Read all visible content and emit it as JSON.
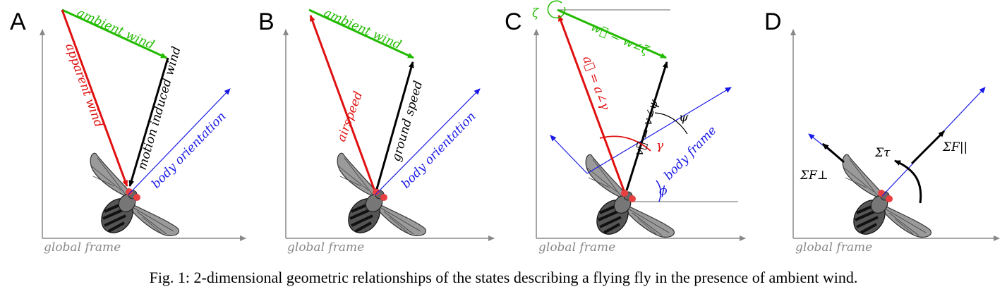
{
  "caption": "Fig. 1: 2-dimensional geometric relationships of the states describing a flying fly in the presence of ambient wind.",
  "colors": {
    "wind": "#22bb00",
    "air": "#e01010",
    "ground": "#000000",
    "body": "#1a1ae6",
    "axis": "#888888"
  },
  "panels": [
    {
      "letter": "A",
      "frame_label": "global frame",
      "labels": {
        "wind": "ambient wind",
        "air": "apparent wind",
        "ground": "motion induced wind",
        "body": "body orientation"
      }
    },
    {
      "letter": "B",
      "frame_label": "global frame",
      "labels": {
        "wind": "ambient wind",
        "air": "airspeed",
        "ground": "ground speed",
        "body": "body orientation"
      }
    },
    {
      "letter": "C",
      "frame_label": "global frame",
      "labels": {
        "wind": "w⃗ = w∠ζ",
        "air": "a⃗ = a∠γ",
        "ground": "v⃗ = v∠ψ",
        "body": "body frame",
        "zeta": "ζ",
        "psi": "ψ",
        "gamma": "γ",
        "phi": "ϕ"
      }
    },
    {
      "letter": "D",
      "frame_label": "global frame",
      "labels": {
        "f_perp": "ΣF⊥",
        "torque": "Στ",
        "f_par": "ΣF||"
      }
    }
  ]
}
